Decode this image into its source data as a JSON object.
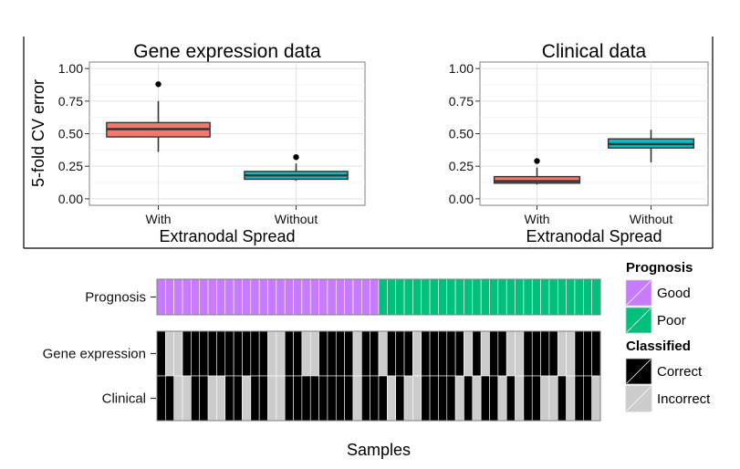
{
  "chart_data": [
    {
      "type": "box",
      "title": "Gene expression data",
      "ylabel": "5-fold CV error",
      "xlabel": "Extranodal Spread",
      "ylim": [
        -0.05,
        1.05
      ],
      "yticks": [
        "1.00",
        "0.75",
        "0.50",
        "0.25",
        "0.00"
      ],
      "ytick_values": [
        1.0,
        0.75,
        0.5,
        0.25,
        0.0
      ],
      "categories": [
        "With",
        "Without"
      ],
      "boxes": [
        {
          "category": "With",
          "min": 0.36,
          "q1": 0.475,
          "median": 0.535,
          "q3": 0.585,
          "max": 0.75,
          "outliers": [
            0.88
          ],
          "color": "#f8766d"
        },
        {
          "category": "Without",
          "min": 0.14,
          "q1": 0.15,
          "median": 0.18,
          "q3": 0.21,
          "max": 0.27,
          "outliers": [
            0.32
          ],
          "color": "#00bfc4"
        }
      ]
    },
    {
      "type": "box",
      "title": "Clinical data",
      "ylabel": "",
      "xlabel": "Extranodal Spread",
      "ylim": [
        -0.05,
        1.05
      ],
      "yticks": [
        "1.00",
        "0.75",
        "0.50",
        "0.25",
        "0.00"
      ],
      "ytick_values": [
        1.0,
        0.75,
        0.5,
        0.25,
        0.0
      ],
      "categories": [
        "With",
        "Without"
      ],
      "boxes": [
        {
          "category": "With",
          "min": 0.11,
          "q1": 0.12,
          "median": 0.135,
          "q3": 0.17,
          "max": 0.24,
          "outliers": [
            0.29
          ],
          "color": "#f8766d"
        },
        {
          "category": "Without",
          "min": 0.28,
          "q1": 0.39,
          "median": 0.42,
          "q3": 0.46,
          "max": 0.53,
          "outliers": [],
          "color": "#00bfc4"
        }
      ]
    },
    {
      "type": "heatmap",
      "xlabel": "Samples",
      "rows": [
        {
          "label": "Prognosis",
          "values": [
            "Good",
            "Good",
            "Good",
            "Good",
            "Good",
            "Good",
            "Good",
            "Good",
            "Good",
            "Good",
            "Good",
            "Good",
            "Good",
            "Good",
            "Good",
            "Good",
            "Good",
            "Good",
            "Good",
            "Good",
            "Good",
            "Good",
            "Good",
            "Good",
            "Good",
            "Good",
            "Poor",
            "Poor",
            "Poor",
            "Poor",
            "Poor",
            "Poor",
            "Poor",
            "Poor",
            "Poor",
            "Poor",
            "Poor",
            "Poor",
            "Poor",
            "Poor",
            "Poor",
            "Poor",
            "Poor",
            "Poor",
            "Poor",
            "Poor",
            "Poor",
            "Poor",
            "Poor",
            "Poor",
            "Poor",
            "Poor"
          ]
        },
        {
          "label": "Gene expression",
          "values": [
            "Correct",
            "Incorrect",
            "Incorrect",
            "Correct",
            "Correct",
            "Correct",
            "Correct",
            "Correct",
            "Correct",
            "Correct",
            "Correct",
            "Correct",
            "Correct",
            "Incorrect",
            "Incorrect",
            "Correct",
            "Correct",
            "Incorrect",
            "Incorrect",
            "Correct",
            "Correct",
            "Correct",
            "Correct",
            "Incorrect",
            "Correct",
            "Correct",
            "Incorrect",
            "Correct",
            "Correct",
            "Correct",
            "Incorrect",
            "Correct",
            "Correct",
            "Correct",
            "Correct",
            "Correct",
            "Incorrect",
            "Correct",
            "Incorrect",
            "Correct",
            "Correct",
            "Incorrect",
            "Incorrect",
            "Correct",
            "Correct",
            "Correct",
            "Correct",
            "Incorrect",
            "Incorrect",
            "Correct",
            "Correct",
            "Correct"
          ]
        },
        {
          "label": "Clinical",
          "values": [
            "Correct",
            "Correct",
            "Incorrect",
            "Incorrect",
            "Correct",
            "Correct",
            "Incorrect",
            "Incorrect",
            "Correct",
            "Correct",
            "Incorrect",
            "Correct",
            "Correct",
            "Incorrect",
            "Incorrect",
            "Correct",
            "Correct",
            "Correct",
            "Correct",
            "Correct",
            "Correct",
            "Correct",
            "Correct",
            "Incorrect",
            "Correct",
            "Correct",
            "Correct",
            "Incorrect",
            "Correct",
            "Incorrect",
            "Incorrect",
            "Correct",
            "Correct",
            "Correct",
            "Correct",
            "Incorrect",
            "Correct",
            "Incorrect",
            "Correct",
            "Correct",
            "Incorrect",
            "Correct",
            "Incorrect",
            "Correct",
            "Correct",
            "Incorrect",
            "Incorrect",
            "Correct",
            "Incorrect",
            "Correct",
            "Correct",
            "Incorrect"
          ]
        }
      ],
      "colors": {
        "Good": "#c77cff",
        "Poor": "#00c07c",
        "Correct": "#000000",
        "Incorrect": "#cccccc"
      },
      "legend": {
        "position": "right",
        "groups": [
          {
            "title": "Prognosis",
            "items": [
              "Good",
              "Poor"
            ]
          },
          {
            "title": "Classified",
            "items": [
              "Correct",
              "Incorrect"
            ]
          }
        ]
      }
    }
  ]
}
